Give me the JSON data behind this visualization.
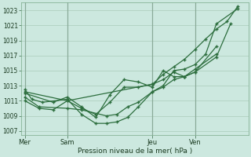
{
  "background_color": "#cce8df",
  "grid_color": "#aaccbb",
  "line_color": "#2d6e3e",
  "ylabel": "Pression niveau de la mer( hPa )",
  "ylim": [
    1006.5,
    1024.0
  ],
  "yticks": [
    1007,
    1009,
    1011,
    1013,
    1015,
    1017,
    1019,
    1021,
    1023
  ],
  "xtick_labels": [
    "Mer",
    "Sam",
    "Jeu",
    "Ven"
  ],
  "xtick_positions": [
    0,
    24,
    72,
    96
  ],
  "xvline_positions": [
    0,
    24,
    72,
    96
  ],
  "xlim": [
    -2,
    126
  ],
  "series": [
    {
      "x": [
        0,
        4,
        10,
        24,
        32,
        40,
        46,
        52,
        58,
        64,
        72,
        78,
        84,
        90,
        96,
        102,
        108,
        120
      ],
      "y": [
        1012.5,
        1011.2,
        1010.8,
        1011.2,
        1009.2,
        1008.0,
        1008.0,
        1008.2,
        1008.8,
        1010.2,
        1012.2,
        1013.0,
        1015.0,
        1015.2,
        1015.8,
        1017.2,
        1021.2,
        1023.2
      ]
    },
    {
      "x": [
        0,
        8,
        24,
        32,
        46,
        52,
        58,
        64,
        72,
        78,
        84,
        90,
        96,
        108,
        116
      ],
      "y": [
        1011.5,
        1010.2,
        1010.0,
        1009.8,
        1009.0,
        1009.2,
        1010.2,
        1010.8,
        1012.2,
        1012.8,
        1013.8,
        1014.2,
        1014.8,
        1016.8,
        1021.2
      ]
    },
    {
      "x": [
        0,
        8,
        16,
        24,
        32,
        40,
        48,
        56,
        64,
        72,
        78,
        84,
        90,
        96,
        108
      ],
      "y": [
        1011.0,
        1010.0,
        1009.8,
        1011.0,
        1010.0,
        1009.2,
        1010.8,
        1012.8,
        1012.8,
        1013.2,
        1013.8,
        1014.8,
        1014.2,
        1015.2,
        1017.2
      ]
    },
    {
      "x": [
        0,
        16,
        24,
        32,
        40,
        48,
        56,
        64,
        72,
        78,
        84,
        90,
        96,
        108
      ],
      "y": [
        1012.0,
        1010.8,
        1011.5,
        1010.2,
        1008.8,
        1011.8,
        1013.8,
        1013.5,
        1012.8,
        1015.0,
        1014.2,
        1014.2,
        1014.8,
        1018.2
      ]
    },
    {
      "x": [
        0,
        24,
        72,
        78,
        84,
        90,
        96,
        102,
        108,
        114,
        120
      ],
      "y": [
        1012.2,
        1011.0,
        1013.2,
        1014.5,
        1015.5,
        1016.5,
        1017.8,
        1019.2,
        1020.5,
        1021.5,
        1023.5
      ]
    }
  ]
}
